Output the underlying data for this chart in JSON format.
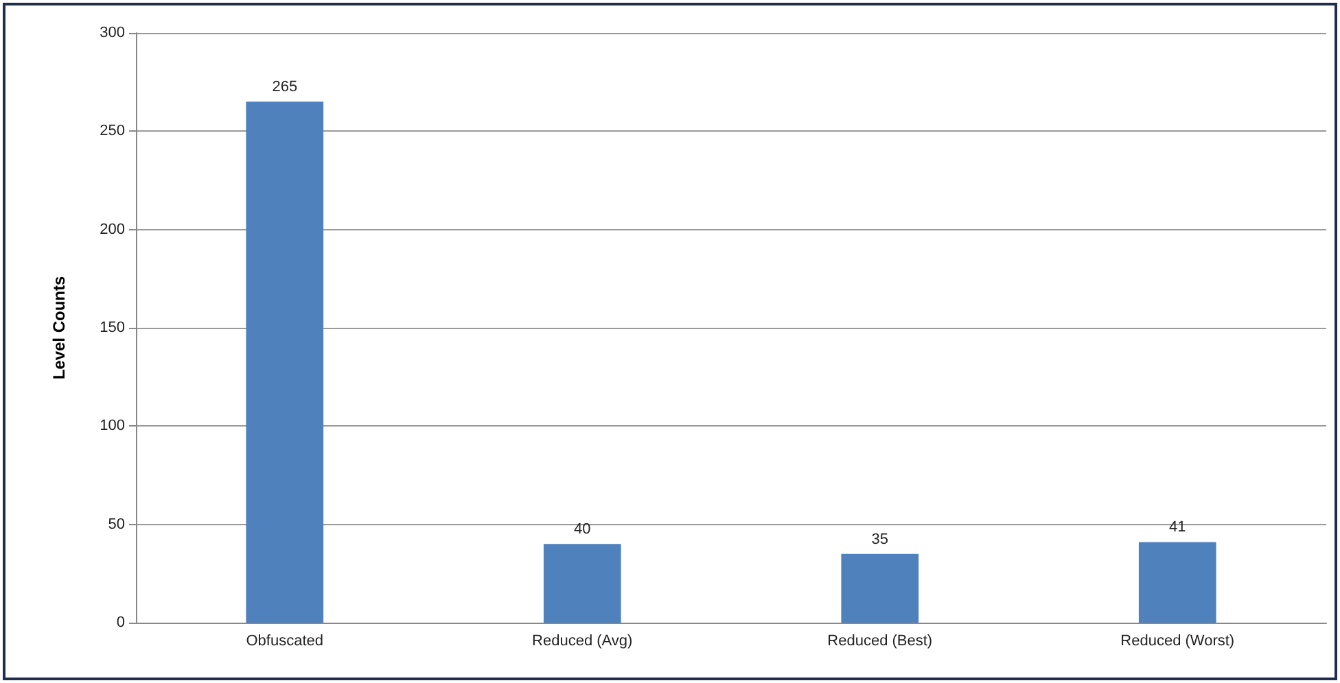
{
  "chart_data": {
    "type": "bar",
    "ylabel": "Level Counts",
    "categories": [
      "Obfuscated",
      "Reduced (Avg)",
      "Reduced (Best)",
      "Reduced (Worst)"
    ],
    "values": [
      265,
      40,
      35,
      41
    ],
    "color": "#4f81bd",
    "ylim": [
      0,
      300
    ],
    "yticks": [
      0,
      50,
      100,
      150,
      200,
      250,
      300
    ],
    "grid": "y",
    "data_labels": true
  }
}
